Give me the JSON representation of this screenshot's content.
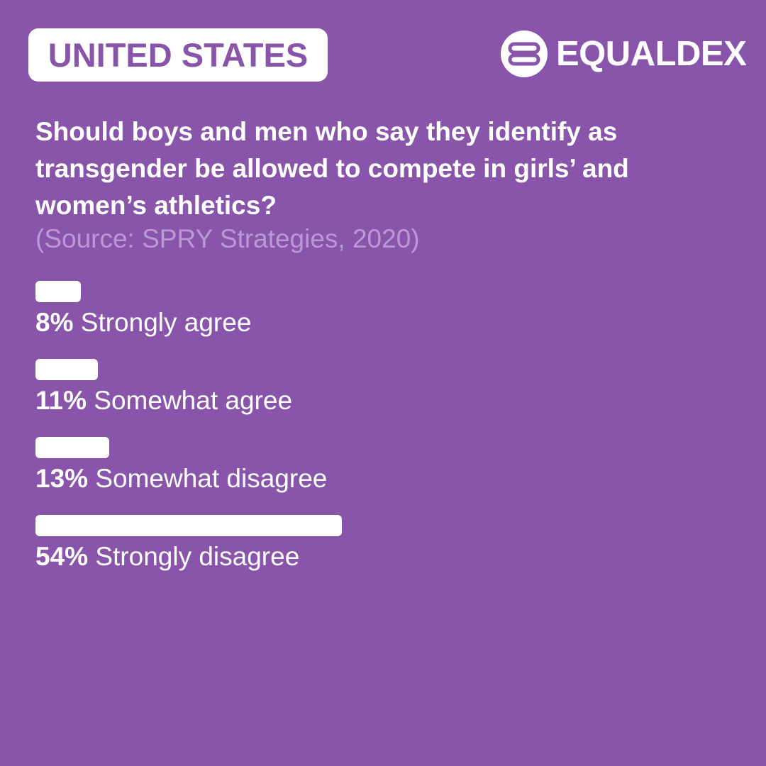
{
  "header": {
    "country": "UNITED STATES",
    "brand": "EQUALDEX",
    "logo_icon": "equaldex-logo-icon"
  },
  "question": "Should boys and men who say they identify as transgender be allowed to compete in girls’ and women’s athletics?",
  "source": "(Source: SPRY Strategies, 2020)",
  "colors": {
    "background": "#8855aa",
    "bar": "#ffffff",
    "text": "#ffffff",
    "source_text": "#b99ad6"
  },
  "chart_data": {
    "type": "bar",
    "orientation": "horizontal",
    "categories": [
      "Strongly agree",
      "Somewhat agree",
      "Somewhat disagree",
      "Strongly disagree"
    ],
    "values": [
      8,
      11,
      13,
      54
    ],
    "value_labels": [
      "8%",
      "11%",
      "13%",
      "54%"
    ],
    "unit": "%",
    "xlim": [
      0,
      100
    ],
    "grid": false
  }
}
